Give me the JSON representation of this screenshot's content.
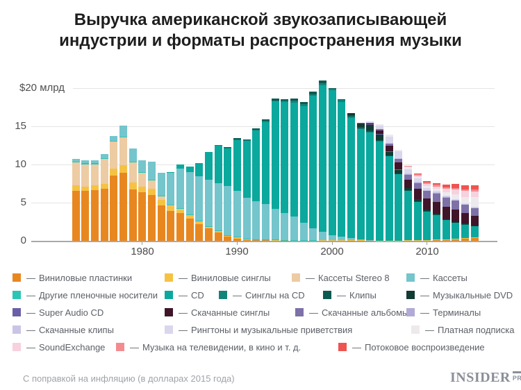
{
  "title": {
    "line1": "Выручка американской звукозаписывающей",
    "line2": "индустрии и форматы распространения музыки"
  },
  "footer": {
    "note": "С поправкой на инфляцию (в долларах 2015 года)",
    "logo_main": "INSIDER",
    "logo_sub": "PRO"
  },
  "legend": {
    "separator": "—",
    "rows": [
      [
        "vinyl_lp",
        "vinyl_single",
        "stereo8",
        "cassette"
      ],
      [
        "other_tape",
        "cd",
        "cd_single",
        "clips",
        "dvd"
      ],
      [
        "sacd",
        "dl_single",
        "dl_album",
        "terminals"
      ],
      [
        "dl_clips",
        "ringtones",
        "paid_sub"
      ],
      [
        "soundexchange",
        "tv_music",
        "streaming"
      ]
    ]
  },
  "chart_data": {
    "type": "bar",
    "stacked": true,
    "title": "Выручка американской звукозаписывающей индустрии и форматы распространения музыки",
    "unit": "$ млрд (в долларах 2015 года)",
    "ylim": [
      0,
      20
    ],
    "grid": true,
    "y_axis_label": "$20 млрд",
    "y_ticks": [
      "15",
      "10",
      "5",
      "0"
    ],
    "x_ticks": [
      {
        "year": 1980,
        "label": "1980"
      },
      {
        "year": 1990,
        "label": "1990"
      },
      {
        "year": 2000,
        "label": "2000"
      },
      {
        "year": 2010,
        "label": "2010"
      }
    ],
    "x": [
      1973,
      1974,
      1975,
      1976,
      1977,
      1978,
      1979,
      1980,
      1981,
      1982,
      1983,
      1984,
      1985,
      1986,
      1987,
      1988,
      1989,
      1990,
      1991,
      1992,
      1993,
      1994,
      1995,
      1996,
      1997,
      1998,
      1999,
      2000,
      2001,
      2002,
      2003,
      2004,
      2005,
      2006,
      2007,
      2008,
      2009,
      2010,
      2011,
      2012,
      2013,
      2014,
      2015
    ],
    "series": [
      {
        "id": "vinyl_lp",
        "label": "Виниловые пластинки",
        "color": "#E8871F",
        "values": [
          6.5,
          6.5,
          6.6,
          6.8,
          8.5,
          8.9,
          6.7,
          6.3,
          6.0,
          4.6,
          3.9,
          3.6,
          2.9,
          2.2,
          1.6,
          1.1,
          0.5,
          0.3,
          0.1,
          0.05,
          0.05,
          0.05,
          0.04,
          0.05,
          0.05,
          0.06,
          0.06,
          0.05,
          0.05,
          0.04,
          0.04,
          0.04,
          0.03,
          0.03,
          0.03,
          0.06,
          0.07,
          0.1,
          0.13,
          0.17,
          0.22,
          0.32,
          0.42
        ]
      },
      {
        "id": "vinyl_single",
        "label": "Виниловые синглы",
        "color": "#F6C244",
        "values": [
          0.7,
          0.6,
          0.6,
          0.6,
          0.9,
          1.0,
          0.9,
          0.8,
          0.8,
          0.7,
          0.6,
          0.55,
          0.5,
          0.35,
          0.25,
          0.18,
          0.2,
          0.15,
          0.12,
          0.1,
          0.1,
          0.08,
          0.07,
          0.07,
          0.06,
          0.05,
          0.05,
          0.04,
          0.03,
          0.02,
          0.02,
          0.02,
          0.01,
          0.01,
          0.01,
          0.01,
          0.01,
          0.01,
          0.01,
          0.01,
          0.01,
          0.01,
          0.01
        ]
      },
      {
        "id": "stereo8",
        "label": "Кассеты Stereo 8",
        "color": "#EDCBA3",
        "values": [
          3.0,
          2.9,
          2.8,
          3.3,
          3.5,
          3.6,
          2.6,
          1.8,
          1.1,
          0.5,
          0.2,
          0.05,
          0,
          0,
          0,
          0,
          0,
          0,
          0,
          0,
          0,
          0,
          0,
          0,
          0,
          0,
          0,
          0,
          0,
          0,
          0,
          0,
          0,
          0,
          0,
          0,
          0,
          0,
          0,
          0,
          0,
          0,
          0
        ]
      },
      {
        "id": "other_tape",
        "label": "Другие пленочные носители",
        "color": "#2BC5B4",
        "values": [
          0.1,
          0.1,
          0.1,
          0.1,
          0.1,
          0.1,
          0.1,
          0.1,
          0.1,
          0.1,
          0.05,
          0.05,
          0.05,
          0.05,
          0.05,
          0.05,
          0.05,
          0.05,
          0.03,
          0.02,
          0.02,
          0.02,
          0.01,
          0.01,
          0.01,
          0.01,
          0,
          0,
          0,
          0,
          0,
          0,
          0,
          0,
          0,
          0,
          0,
          0,
          0,
          0,
          0,
          0,
          0
        ]
      },
      {
        "id": "cassette",
        "label": "Кассеты",
        "color": "#74C5CC",
        "values": [
          0.4,
          0.4,
          0.4,
          0.5,
          0.7,
          1.4,
          1.7,
          1.5,
          2.3,
          3.0,
          4.2,
          5.2,
          5.5,
          5.8,
          6.1,
          6.2,
          6.4,
          6.0,
          5.4,
          5.0,
          4.6,
          4.0,
          3.5,
          3.0,
          2.2,
          1.5,
          1.1,
          0.65,
          0.5,
          0.3,
          0.15,
          0.05,
          0,
          0,
          0,
          0,
          0,
          0,
          0,
          0,
          0,
          0,
          0
        ]
      },
      {
        "id": "cd",
        "label": "CD",
        "color": "#0BA89D",
        "values": [
          0,
          0,
          0,
          0,
          0,
          0,
          0,
          0,
          0,
          0,
          0.05,
          0.5,
          0.7,
          1.7,
          3.6,
          4.9,
          4.9,
          6.6,
          7.4,
          9.2,
          10.7,
          14.0,
          14.5,
          14.9,
          15.2,
          17.3,
          19.1,
          18.9,
          17.5,
          15.7,
          14.4,
          14.1,
          13.0,
          11.05,
          8.7,
          6.5,
          5.1,
          3.8,
          3.3,
          2.6,
          2.2,
          1.85,
          1.52
        ]
      },
      {
        "id": "cd_single",
        "label": "Синглы на CD",
        "color": "#15837A",
        "values": [
          0,
          0,
          0,
          0,
          0,
          0,
          0,
          0,
          0,
          0,
          0,
          0,
          0,
          0,
          0,
          0.1,
          0.1,
          0.15,
          0.1,
          0.15,
          0.15,
          0.15,
          0.17,
          0.25,
          0.35,
          0.2,
          0.25,
          0.2,
          0.25,
          0.1,
          0.05,
          0.03,
          0.02,
          0.02,
          0.01,
          0.01,
          0,
          0,
          0,
          0,
          0,
          0,
          0
        ]
      },
      {
        "id": "clips",
        "label": "Клипы",
        "color": "#0D5A50",
        "values": [
          0,
          0,
          0,
          0,
          0,
          0,
          0,
          0,
          0,
          0,
          0,
          0,
          0,
          0,
          0,
          0,
          0.1,
          0.1,
          0.1,
          0.1,
          0.2,
          0.25,
          0.2,
          0.25,
          0.25,
          0.3,
          0.35,
          0.1,
          0.15,
          0.2,
          0.2,
          0.15,
          0.1,
          0.05,
          0.03,
          0.02,
          0.02,
          0.02,
          0.01,
          0.01,
          0.01,
          0.01,
          0.01
        ]
      },
      {
        "id": "dvd",
        "label": "Музыкальные DVD",
        "color": "#123B33",
        "values": [
          0,
          0,
          0,
          0,
          0,
          0,
          0,
          0,
          0,
          0,
          0,
          0,
          0,
          0,
          0,
          0,
          0,
          0,
          0,
          0,
          0,
          0,
          0,
          0,
          0,
          0,
          0,
          0,
          0,
          0.3,
          0.5,
          0.75,
          0.75,
          0.53,
          0.55,
          0.24,
          0.26,
          0.18,
          0.09,
          0.05,
          0.04,
          0.03,
          0.03
        ]
      },
      {
        "id": "sacd",
        "label": "Super Audio CD",
        "color": "#6A5FA7",
        "values": [
          0,
          0,
          0,
          0,
          0,
          0,
          0,
          0,
          0,
          0,
          0,
          0,
          0,
          0,
          0,
          0,
          0,
          0,
          0,
          0,
          0,
          0,
          0,
          0,
          0,
          0,
          0,
          0,
          0,
          0,
          0.03,
          0.03,
          0.02,
          0.01,
          0.01,
          0,
          0,
          0,
          0,
          0,
          0,
          0,
          0
        ]
      },
      {
        "id": "dl_single",
        "label": "Скачанные синглы",
        "color": "#401529",
        "values": [
          0,
          0,
          0,
          0,
          0,
          0,
          0,
          0,
          0,
          0,
          0,
          0,
          0,
          0,
          0,
          0,
          0,
          0,
          0,
          0,
          0,
          0,
          0,
          0,
          0,
          0,
          0,
          0,
          0,
          0,
          0,
          0.18,
          0.45,
          0.68,
          0.9,
          1.15,
          1.3,
          1.45,
          1.55,
          1.6,
          1.57,
          1.4,
          1.23
        ]
      },
      {
        "id": "dl_album",
        "label": "Скачанные альбомы",
        "color": "#7D71A8",
        "values": [
          0,
          0,
          0,
          0,
          0,
          0,
          0,
          0,
          0,
          0,
          0,
          0,
          0,
          0,
          0,
          0,
          0,
          0,
          0,
          0,
          0,
          0,
          0,
          0,
          0,
          0,
          0,
          0,
          0,
          0,
          0,
          0.06,
          0.17,
          0.33,
          0.52,
          0.71,
          0.83,
          0.97,
          1.15,
          1.23,
          1.23,
          1.16,
          1.09
        ]
      },
      {
        "id": "terminals",
        "label": "Терминалы",
        "color": "#B2AAD5",
        "values": [
          0,
          0,
          0,
          0,
          0,
          0,
          0,
          0,
          0,
          0,
          0,
          0,
          0,
          0,
          0,
          0,
          0,
          0,
          0,
          0,
          0,
          0,
          0,
          0,
          0,
          0,
          0,
          0,
          0,
          0,
          0,
          0,
          0,
          0,
          0,
          0.03,
          0.05,
          0.05,
          0.05,
          0.04,
          0.03,
          0.03,
          0.03
        ]
      },
      {
        "id": "dl_clips",
        "label": "Скачанные клипы",
        "color": "#C9C5E6",
        "values": [
          0,
          0,
          0,
          0,
          0,
          0,
          0,
          0,
          0,
          0,
          0,
          0,
          0,
          0,
          0,
          0,
          0,
          0,
          0,
          0,
          0,
          0,
          0,
          0,
          0,
          0,
          0,
          0,
          0,
          0,
          0,
          0,
          0,
          0.01,
          0.02,
          0.03,
          0.04,
          0.04,
          0.05,
          0.05,
          0.04,
          0.03,
          0.03
        ]
      },
      {
        "id": "ringtones",
        "label": "Рингтоны и музыкальные приветствия",
        "color": "#D9D6EE",
        "values": [
          0,
          0,
          0,
          0,
          0,
          0,
          0,
          0,
          0,
          0,
          0,
          0,
          0,
          0,
          0,
          0,
          0,
          0,
          0,
          0,
          0,
          0,
          0,
          0,
          0,
          0,
          0,
          0,
          0,
          0,
          0,
          0.2,
          0.5,
          0.88,
          0.87,
          0.6,
          0.42,
          0.28,
          0.19,
          0.12,
          0.08,
          0.07,
          0.07
        ]
      },
      {
        "id": "paid_sub",
        "label": "Платная подписка",
        "color": "#EDE9ED",
        "values": [
          0,
          0,
          0,
          0,
          0,
          0,
          0,
          0,
          0,
          0,
          0,
          0,
          0,
          0,
          0,
          0,
          0,
          0,
          0,
          0,
          0,
          0,
          0,
          0,
          0,
          0,
          0,
          0,
          0,
          0,
          0,
          0,
          0.18,
          0.24,
          0.23,
          0.24,
          0.23,
          0.22,
          0.26,
          0.42,
          0.65,
          0.8,
          1.22
        ]
      },
      {
        "id": "soundexchange",
        "label": "SoundExchange",
        "color": "#F7D1DD",
        "values": [
          0,
          0,
          0,
          0,
          0,
          0,
          0,
          0,
          0,
          0,
          0,
          0,
          0,
          0,
          0,
          0,
          0,
          0,
          0,
          0,
          0,
          0,
          0,
          0,
          0,
          0,
          0,
          0,
          0,
          0,
          0,
          0,
          0,
          0,
          0,
          0.11,
          0.17,
          0.26,
          0.31,
          0.47,
          0.6,
          0.77,
          0.8
        ]
      },
      {
        "id": "tv_music",
        "label": "Музыка на телевидении, в кино и т. д.",
        "color": "#F28C90",
        "values": [
          0,
          0,
          0,
          0,
          0,
          0,
          0,
          0,
          0,
          0,
          0,
          0,
          0,
          0,
          0,
          0,
          0,
          0,
          0,
          0,
          0,
          0,
          0,
          0,
          0,
          0,
          0,
          0,
          0,
          0,
          0,
          0,
          0,
          0,
          0,
          0.1,
          0.2,
          0.2,
          0.2,
          0.2,
          0.2,
          0.19,
          0.2
        ]
      },
      {
        "id": "streaming",
        "label": "Потоковое воспроизведение",
        "color": "#EE5451",
        "values": [
          0,
          0,
          0,
          0,
          0,
          0,
          0,
          0,
          0,
          0,
          0,
          0,
          0,
          0,
          0,
          0,
          0,
          0,
          0,
          0,
          0,
          0,
          0,
          0,
          0,
          0,
          0,
          0,
          0,
          0,
          0,
          0,
          0,
          0,
          0,
          0,
          0.1,
          0.2,
          0.24,
          0.35,
          0.5,
          0.6,
          0.6
        ]
      }
    ]
  }
}
